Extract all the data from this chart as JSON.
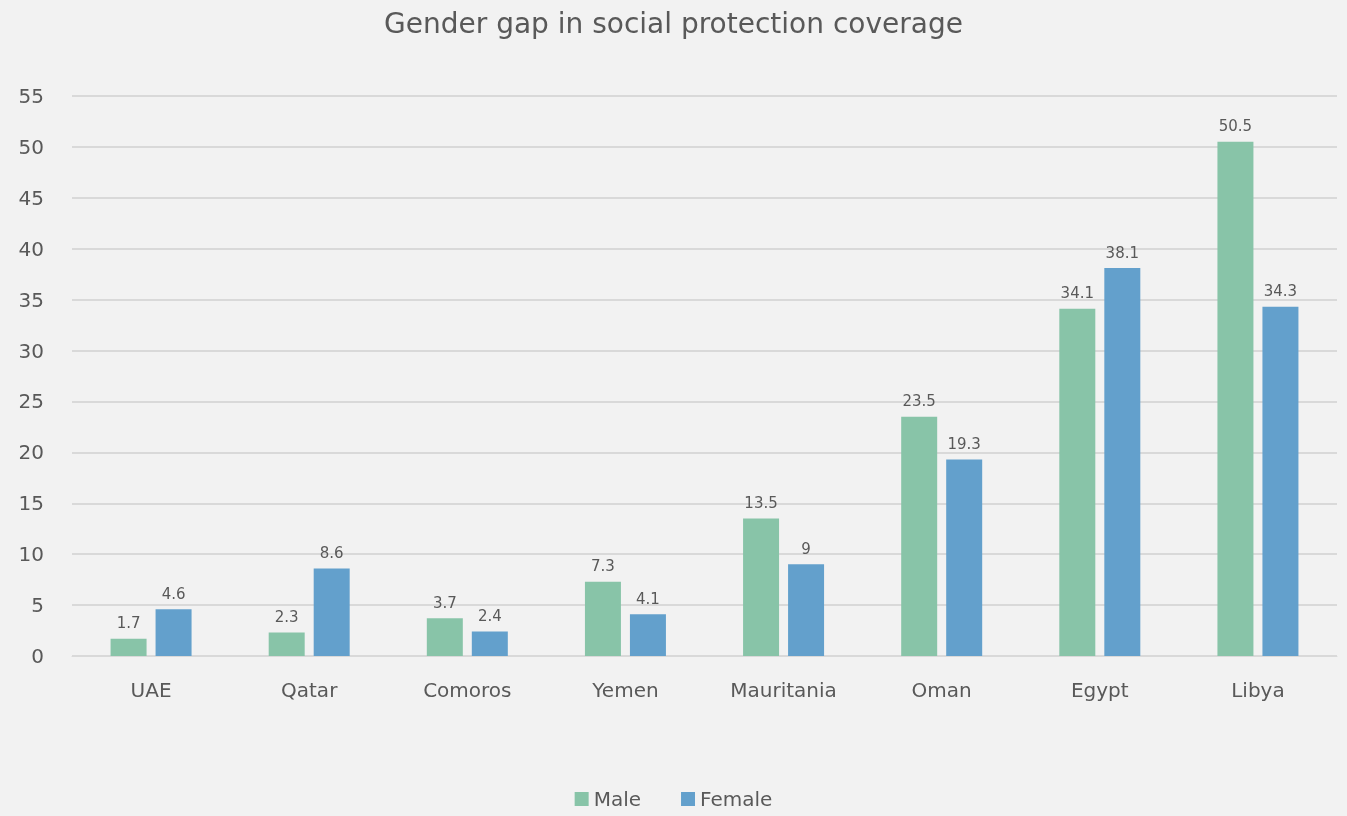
{
  "chart_data": {
    "type": "bar",
    "title": "Gender gap in social protection coverage",
    "categories": [
      "UAE",
      "Qatar",
      "Comoros",
      "Yemen",
      "Mauritania",
      "Oman",
      "Egypt",
      "Libya"
    ],
    "series": [
      {
        "name": "Male",
        "color": "#88c4a8",
        "values": [
          1.7,
          2.3,
          3.7,
          7.3,
          13.5,
          23.5,
          34.1,
          50.5
        ]
      },
      {
        "name": "Female",
        "color": "#63a0cc",
        "values": [
          4.6,
          8.6,
          2.4,
          4.1,
          9,
          19.3,
          38.1,
          34.3
        ]
      }
    ],
    "ylim": [
      0,
      55
    ],
    "yticks": [
      0,
      5,
      10,
      15,
      20,
      25,
      30,
      35,
      40,
      45,
      50,
      55
    ],
    "grid": "y",
    "legend": "bottom",
    "data_labels": true
  }
}
